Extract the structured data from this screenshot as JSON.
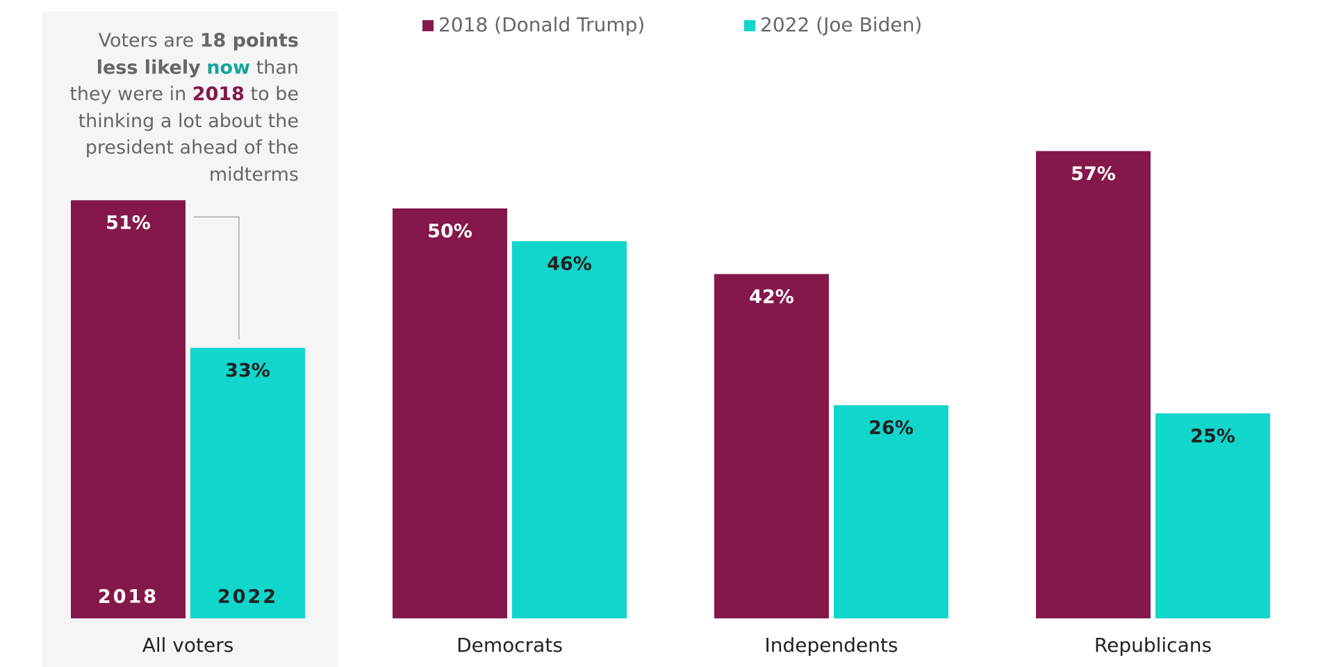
{
  "chart_data": {
    "type": "bar",
    "categories": [
      "All voters",
      "Democrats",
      "Independents",
      "Republicans"
    ],
    "series": [
      {
        "name": "2018 (Donald Trump)",
        "color": "#84184b",
        "values": [
          51,
          50,
          42,
          57
        ],
        "value_labels": [
          "51%",
          "50%",
          "42%",
          "57%"
        ]
      },
      {
        "name": "2022 (Joe Biden)",
        "color": "#11d6cc",
        "values": [
          33,
          46,
          26,
          25
        ],
        "value_labels": [
          "33%",
          "46%",
          "26%",
          "25%"
        ]
      }
    ],
    "inner_labels": [
      "2018",
      "2022"
    ],
    "annotation": [
      "Voters are",
      "18 points less likely",
      "now",
      "than they were in",
      "2018",
      "to be thinking a lot about the president ahead of the midterms"
    ],
    "legend": "top"
  }
}
